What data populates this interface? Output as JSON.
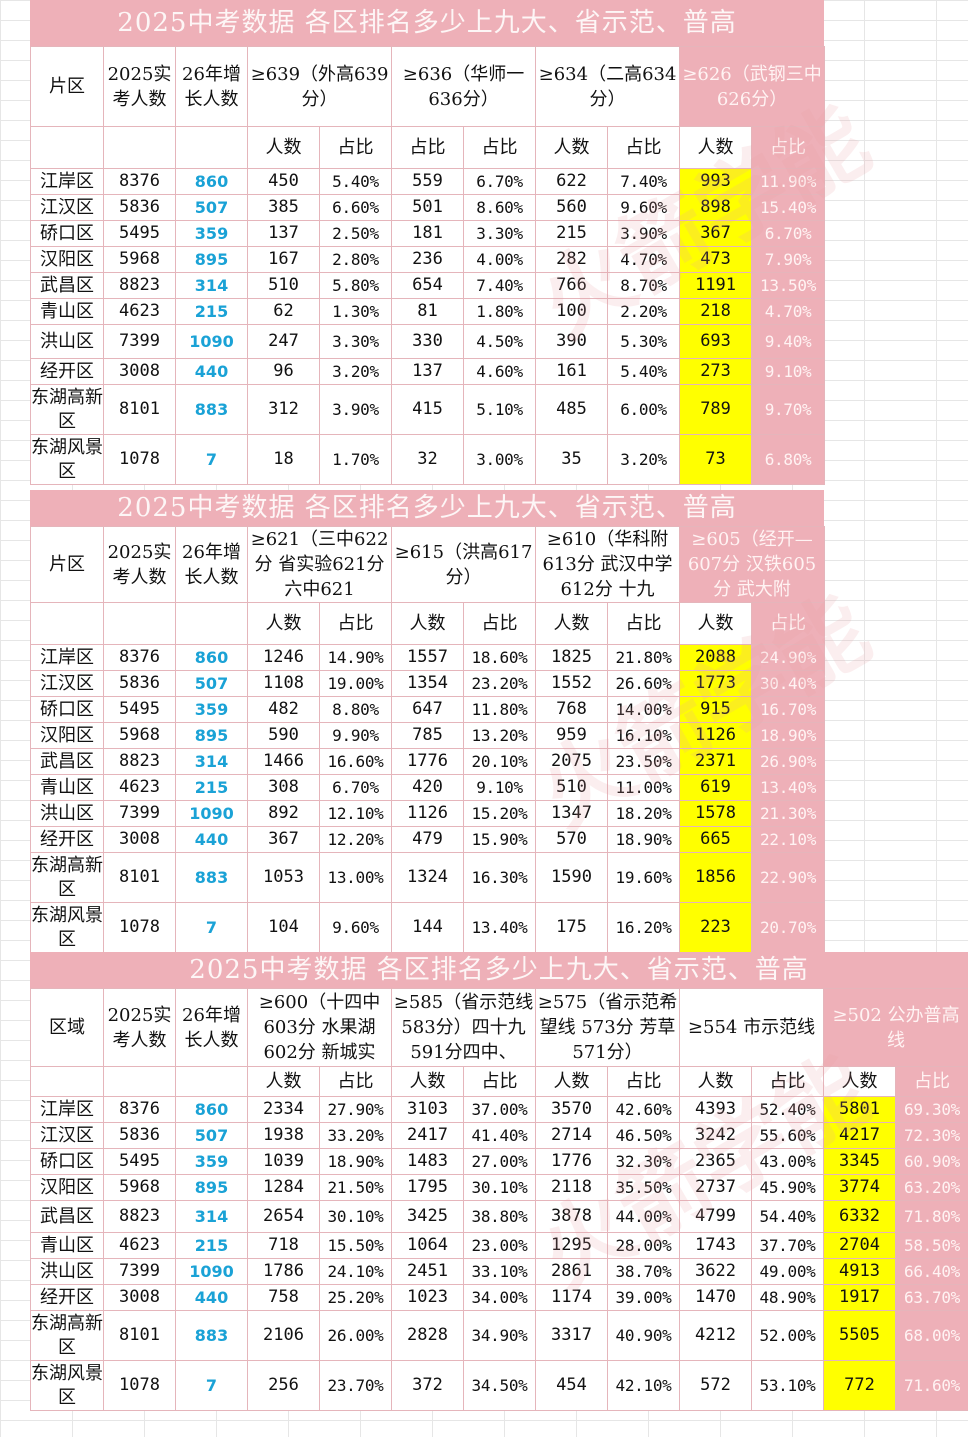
{
  "sections": [
    {
      "title": "2025中考数据  各区排名多少上九大、省示范、普高",
      "head_region": "片区",
      "head_count": "2025实考人数",
      "head_growth": "26年增长人数",
      "groups": [
        "≥639（外高639分）",
        "≥636（华师一636分）",
        "≥634（二高634分）",
        "≥626（武钢三中 626分）"
      ],
      "sub": [
        "人数",
        "占比"
      ],
      "rows": [
        {
          "region": "江岸区",
          "count": "8376",
          "growth": "860",
          "v": [
            "450",
            "5.40%",
            "559",
            "6.70%",
            "622",
            "7.40%",
            "993",
            "11.90%"
          ]
        },
        {
          "region": "江汉区",
          "count": "5836",
          "growth": "507",
          "v": [
            "385",
            "6.60%",
            "501",
            "8.60%",
            "560",
            "9.60%",
            "898",
            "15.40%"
          ]
        },
        {
          "region": "硚口区",
          "count": "5495",
          "growth": "359",
          "v": [
            "137",
            "2.50%",
            "181",
            "3.30%",
            "215",
            "3.90%",
            "367",
            "6.70%"
          ]
        },
        {
          "region": "汉阳区",
          "count": "5968",
          "growth": "895",
          "v": [
            "167",
            "2.80%",
            "236",
            "4.00%",
            "282",
            "4.70%",
            "473",
            "7.90%"
          ]
        },
        {
          "region": "武昌区",
          "count": "8823",
          "growth": "314",
          "v": [
            "510",
            "5.80%",
            "654",
            "7.40%",
            "766",
            "8.70%",
            "1191",
            "13.50%"
          ]
        },
        {
          "region": "青山区",
          "count": "4623",
          "growth": "215",
          "v": [
            "62",
            "1.30%",
            "81",
            "1.80%",
            "100",
            "2.20%",
            "218",
            "4.70%"
          ]
        },
        {
          "region": "洪山区",
          "count": "7399",
          "growth": "1090",
          "v": [
            "247",
            "3.30%",
            "330",
            "4.50%",
            "390",
            "5.30%",
            "693",
            "9.40%"
          ]
        },
        {
          "region": "经开区",
          "count": "3008",
          "growth": "440",
          "v": [
            "96",
            "3.20%",
            "137",
            "4.60%",
            "161",
            "5.40%",
            "273",
            "9.10%"
          ]
        },
        {
          "region": "东湖高新区",
          "count": "8101",
          "growth": "883",
          "v": [
            "312",
            "3.90%",
            "415",
            "5.10%",
            "485",
            "6.00%",
            "789",
            "9.70%"
          ]
        },
        {
          "region": "东湖风景区",
          "count": "1078",
          "growth": "7",
          "v": [
            "18",
            "1.70%",
            "32",
            "3.00%",
            "35",
            "3.20%",
            "73",
            "6.80%"
          ]
        }
      ]
    },
    {
      "title": "2025中考数据  各区排名多少上九大、省示范、普高",
      "head_region": "片区",
      "head_count": "2025实考人数",
      "head_growth": "26年增长人数",
      "groups": [
        "≥621（三中622分 省实验621分 六中621",
        "≥615（洪高617分）",
        "≥610（华科附613分 武汉中学612分 十九",
        "≥605（经开—607分 汉铁605分 武大附"
      ],
      "sub": [
        "人数",
        "占比"
      ],
      "rows": [
        {
          "region": "江岸区",
          "count": "8376",
          "growth": "860",
          "v": [
            "1246",
            "14.90%",
            "1557",
            "18.60%",
            "1825",
            "21.80%",
            "2088",
            "24.90%"
          ]
        },
        {
          "region": "江汉区",
          "count": "5836",
          "growth": "507",
          "v": [
            "1108",
            "19.00%",
            "1354",
            "23.20%",
            "1552",
            "26.60%",
            "1773",
            "30.40%"
          ]
        },
        {
          "region": "硚口区",
          "count": "5495",
          "growth": "359",
          "v": [
            "482",
            "8.80%",
            "647",
            "11.80%",
            "768",
            "14.00%",
            "915",
            "16.70%"
          ]
        },
        {
          "region": "汉阳区",
          "count": "5968",
          "growth": "895",
          "v": [
            "590",
            "9.90%",
            "785",
            "13.20%",
            "959",
            "16.10%",
            "1126",
            "18.90%"
          ]
        },
        {
          "region": "武昌区",
          "count": "8823",
          "growth": "314",
          "v": [
            "1466",
            "16.60%",
            "1776",
            "20.10%",
            "2075",
            "23.50%",
            "2371",
            "26.90%"
          ]
        },
        {
          "region": "青山区",
          "count": "4623",
          "growth": "215",
          "v": [
            "308",
            "6.70%",
            "420",
            "9.10%",
            "510",
            "11.00%",
            "619",
            "13.40%"
          ]
        },
        {
          "region": "洪山区",
          "count": "7399",
          "growth": "1090",
          "v": [
            "892",
            "12.10%",
            "1126",
            "15.20%",
            "1347",
            "18.20%",
            "1578",
            "21.30%"
          ]
        },
        {
          "region": "经开区",
          "count": "3008",
          "growth": "440",
          "v": [
            "367",
            "12.20%",
            "479",
            "15.90%",
            "570",
            "18.90%",
            "665",
            "22.10%"
          ]
        },
        {
          "region": "东湖高新区",
          "count": "8101",
          "growth": "883",
          "v": [
            "1053",
            "13.00%",
            "1324",
            "16.30%",
            "1590",
            "19.60%",
            "1856",
            "22.90%"
          ]
        },
        {
          "region": "东湖风景区",
          "count": "1078",
          "growth": "7",
          "v": [
            "104",
            "9.60%",
            "144",
            "13.40%",
            "175",
            "16.20%",
            "223",
            "20.70%"
          ]
        }
      ]
    },
    {
      "title": "2025中考数据  各区排名多少上九大、省示范、普高",
      "head_region": "区域",
      "head_count": "2025实考人数",
      "head_growth": "26年增长人数",
      "groups": [
        "≥600（十四中603分 水果湖602分 新城实",
        "≥585（省示范线583分）四十九591分四中、",
        "≥575（省示范希望线 573分 芳草571分）",
        "≥554 市示范线",
        "≥502 公办普高线"
      ],
      "sub": [
        "人数",
        "占比"
      ],
      "rows": [
        {
          "region": "江岸区",
          "count": "8376",
          "growth": "860",
          "v": [
            "2334",
            "27.90%",
            "3103",
            "37.00%",
            "3570",
            "42.60%",
            "4393",
            "52.40%",
            "5801",
            "69.30%"
          ]
        },
        {
          "region": "江汉区",
          "count": "5836",
          "growth": "507",
          "v": [
            "1938",
            "33.20%",
            "2417",
            "41.40%",
            "2714",
            "46.50%",
            "3242",
            "55.60%",
            "4217",
            "72.30%"
          ]
        },
        {
          "region": "硚口区",
          "count": "5495",
          "growth": "359",
          "v": [
            "1039",
            "18.90%",
            "1483",
            "27.00%",
            "1776",
            "32.30%",
            "2365",
            "43.00%",
            "3345",
            "60.90%"
          ]
        },
        {
          "region": "汉阳区",
          "count": "5968",
          "growth": "895",
          "v": [
            "1284",
            "21.50%",
            "1795",
            "30.10%",
            "2118",
            "35.50%",
            "2737",
            "45.90%",
            "3774",
            "63.20%"
          ]
        },
        {
          "region": "武昌区",
          "count": "8823",
          "growth": "314",
          "v": [
            "2654",
            "30.10%",
            "3425",
            "38.80%",
            "3878",
            "44.00%",
            "4799",
            "54.40%",
            "6332",
            "71.80%"
          ]
        },
        {
          "region": "青山区",
          "count": "4623",
          "growth": "215",
          "v": [
            "718",
            "15.50%",
            "1064",
            "23.00%",
            "1295",
            "28.00%",
            "1743",
            "37.70%",
            "2704",
            "58.50%"
          ]
        },
        {
          "region": "洪山区",
          "count": "7399",
          "growth": "1090",
          "v": [
            "1786",
            "24.10%",
            "2451",
            "33.10%",
            "2861",
            "38.70%",
            "3622",
            "49.00%",
            "4913",
            "66.40%"
          ]
        },
        {
          "region": "经开区",
          "count": "3008",
          "growth": "440",
          "v": [
            "758",
            "25.20%",
            "1023",
            "34.00%",
            "1174",
            "39.00%",
            "1470",
            "48.90%",
            "1917",
            "63.70%"
          ]
        },
        {
          "region": "东湖高新区",
          "count": "8101",
          "growth": "883",
          "v": [
            "2106",
            "26.00%",
            "2828",
            "34.90%",
            "3317",
            "40.90%",
            "4212",
            "52.00%",
            "5505",
            "68.00%"
          ]
        },
        {
          "region": "东湖风景区",
          "count": "1078",
          "growth": "7",
          "v": [
            "256",
            "23.70%",
            "372",
            "34.50%",
            "454",
            "42.10%",
            "572",
            "53.10%",
            "772",
            "71.60%"
          ]
        }
      ]
    }
  ],
  "watermark_text": "火箭学能",
  "colors": {
    "header_pink": "#eeb0b8",
    "highlight_yellow": "#ffff00",
    "growth_blue": "#1aa2d6",
    "border": "#e5b5bb"
  }
}
